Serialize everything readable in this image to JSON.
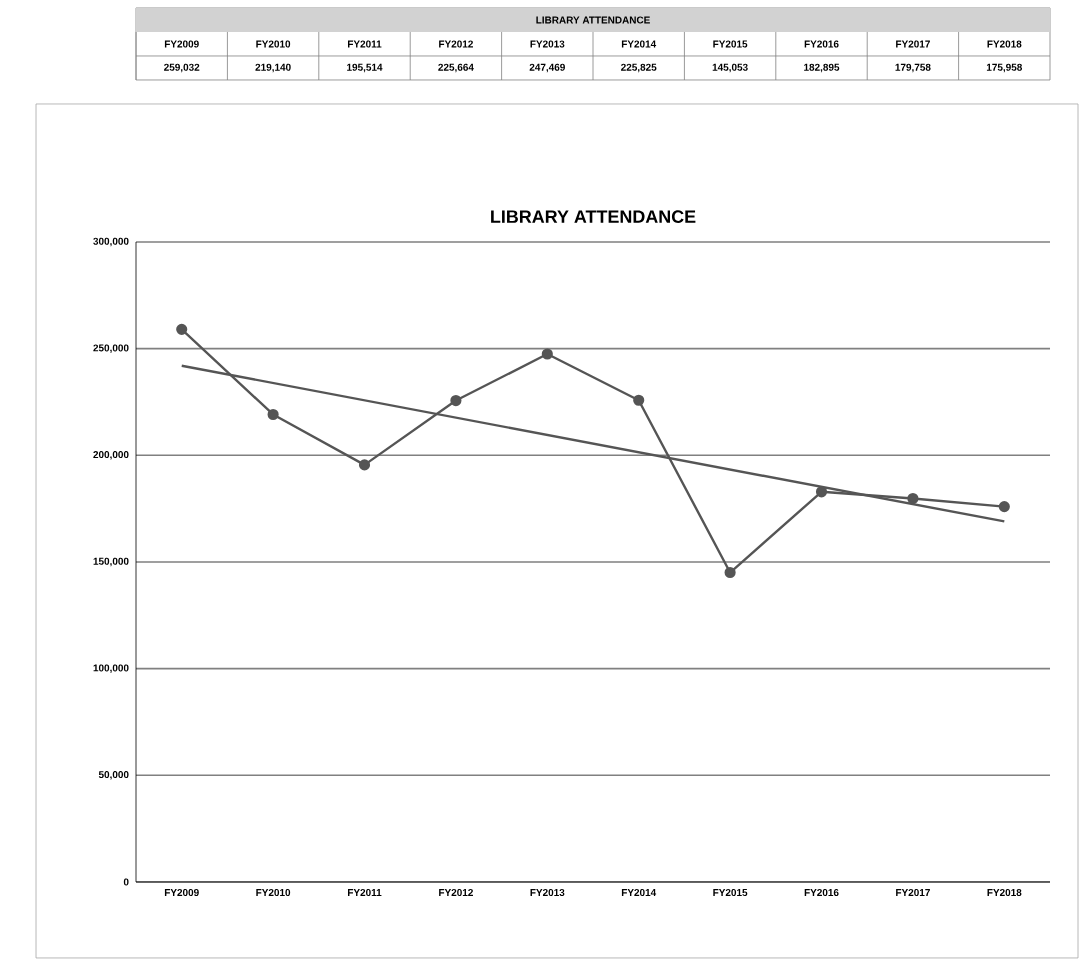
{
  "chart_data": {
    "type": "line",
    "title": "LIBRARY ATTENDANCE",
    "annotations": [
      "LIBRARY ATTENDANCE"
    ],
    "categories": [
      "FY2009",
      "FY2010",
      "FY2011",
      "FY2012",
      "FY2013",
      "FY2014",
      "FY2015",
      "FY2016",
      "FY2017",
      "FY2018"
    ],
    "series": [
      {
        "color": "#555555",
        "marker": "circle",
        "values": [
          259032,
          219140,
          195514,
          225664,
          247469,
          225825,
          145053,
          182895,
          179758,
          175958
        ],
        "value_labels": [
          "259,032",
          "219,140",
          "195,514",
          "225,664",
          "247,469",
          "225,825",
          "145,053",
          "182,895",
          "179,758",
          "175,958"
        ]
      },
      {
        "type": "line",
        "color": "#555555",
        "marker": "none",
        "x": [
          "FY2009",
          "FY2018"
        ],
        "values": [
          242000,
          169000
        ]
      }
    ],
    "ylim": [
      0,
      300000
    ],
    "yticks": [
      {
        "value": 0,
        "label": "0"
      },
      {
        "value": 50000,
        "label": "50,000"
      },
      {
        "value": 100000,
        "label": "100,000"
      },
      {
        "value": 150000,
        "label": "150,000"
      },
      {
        "value": 200000,
        "label": "200,000"
      },
      {
        "value": 250000,
        "label": "250,000"
      },
      {
        "value": 300000,
        "label": "300,000"
      }
    ],
    "grid": "y"
  }
}
